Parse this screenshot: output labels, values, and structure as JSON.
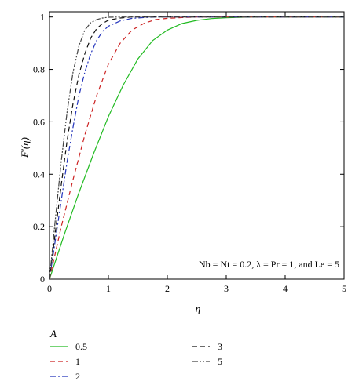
{
  "chart_data": {
    "type": "line",
    "title": "",
    "xlabel": "η",
    "ylabel": "F′(η)",
    "xlim": [
      0,
      5
    ],
    "ylim": [
      0,
      1.02
    ],
    "x_ticks": [
      "0",
      "1",
      "2",
      "3",
      "4",
      "5"
    ],
    "y_ticks": [
      "0",
      "0.2",
      "0.4",
      "0.6",
      "0.8",
      "1"
    ],
    "grid": false,
    "annotation": "Nb = Nt = 0.2, λ = Pr = 1, and Le = 5",
    "legend_title": "A",
    "legend_position": "bottom",
    "series": [
      {
        "name": "0.5",
        "color": "#22bb22",
        "dash": "solid",
        "x": [
          0,
          0.25,
          0.5,
          0.75,
          1.0,
          1.25,
          1.5,
          1.75,
          2.0,
          2.25,
          2.5,
          2.75,
          3.0,
          3.25,
          3.5,
          4.0,
          5.0
        ],
        "y": [
          0,
          0.17,
          0.33,
          0.48,
          0.62,
          0.74,
          0.84,
          0.91,
          0.95,
          0.975,
          0.987,
          0.994,
          0.997,
          0.999,
          1.0,
          1.0,
          1.0
        ]
      },
      {
        "name": "1",
        "color": "#cc2222",
        "dash": "dashed",
        "x": [
          0,
          0.2,
          0.4,
          0.6,
          0.8,
          1.0,
          1.2,
          1.4,
          1.6,
          1.8,
          2.0,
          2.25,
          2.5,
          3.0,
          4.0,
          5.0
        ],
        "y": [
          0,
          0.2,
          0.38,
          0.55,
          0.7,
          0.82,
          0.9,
          0.95,
          0.975,
          0.99,
          0.995,
          0.998,
          1.0,
          1.0,
          1.0,
          1.0
        ]
      },
      {
        "name": "2",
        "color": "#2233bb",
        "dash": "dashdot",
        "x": [
          0,
          0.1,
          0.2,
          0.3,
          0.4,
          0.5,
          0.6,
          0.7,
          0.8,
          0.9,
          1.0,
          1.2,
          1.4,
          1.6,
          1.8,
          2.0,
          3.0,
          5.0
        ],
        "y": [
          0,
          0.15,
          0.3,
          0.45,
          0.58,
          0.7,
          0.79,
          0.86,
          0.91,
          0.945,
          0.965,
          0.985,
          0.995,
          0.998,
          1.0,
          1.0,
          1.0,
          1.0
        ]
      },
      {
        "name": "3",
        "color": "#111111",
        "dash": "dashed",
        "x": [
          0,
          0.1,
          0.2,
          0.3,
          0.4,
          0.5,
          0.6,
          0.7,
          0.8,
          0.9,
          1.0,
          1.2,
          1.4,
          1.6,
          2.0,
          3.0,
          5.0
        ],
        "y": [
          0,
          0.18,
          0.36,
          0.53,
          0.67,
          0.78,
          0.86,
          0.92,
          0.955,
          0.975,
          0.988,
          0.996,
          1.0,
          1.0,
          1.0,
          1.0,
          1.0
        ]
      },
      {
        "name": "5",
        "color": "#444444",
        "dash": "dashdotdot",
        "x": [
          0,
          0.1,
          0.2,
          0.3,
          0.4,
          0.5,
          0.6,
          0.7,
          0.8,
          0.9,
          1.0,
          1.2,
          1.5,
          2.0,
          3.0,
          5.0
        ],
        "y": [
          0,
          0.23,
          0.45,
          0.64,
          0.79,
          0.89,
          0.95,
          0.978,
          0.99,
          0.996,
          0.999,
          1.0,
          1.0,
          1.0,
          1.0,
          1.0
        ]
      }
    ]
  }
}
